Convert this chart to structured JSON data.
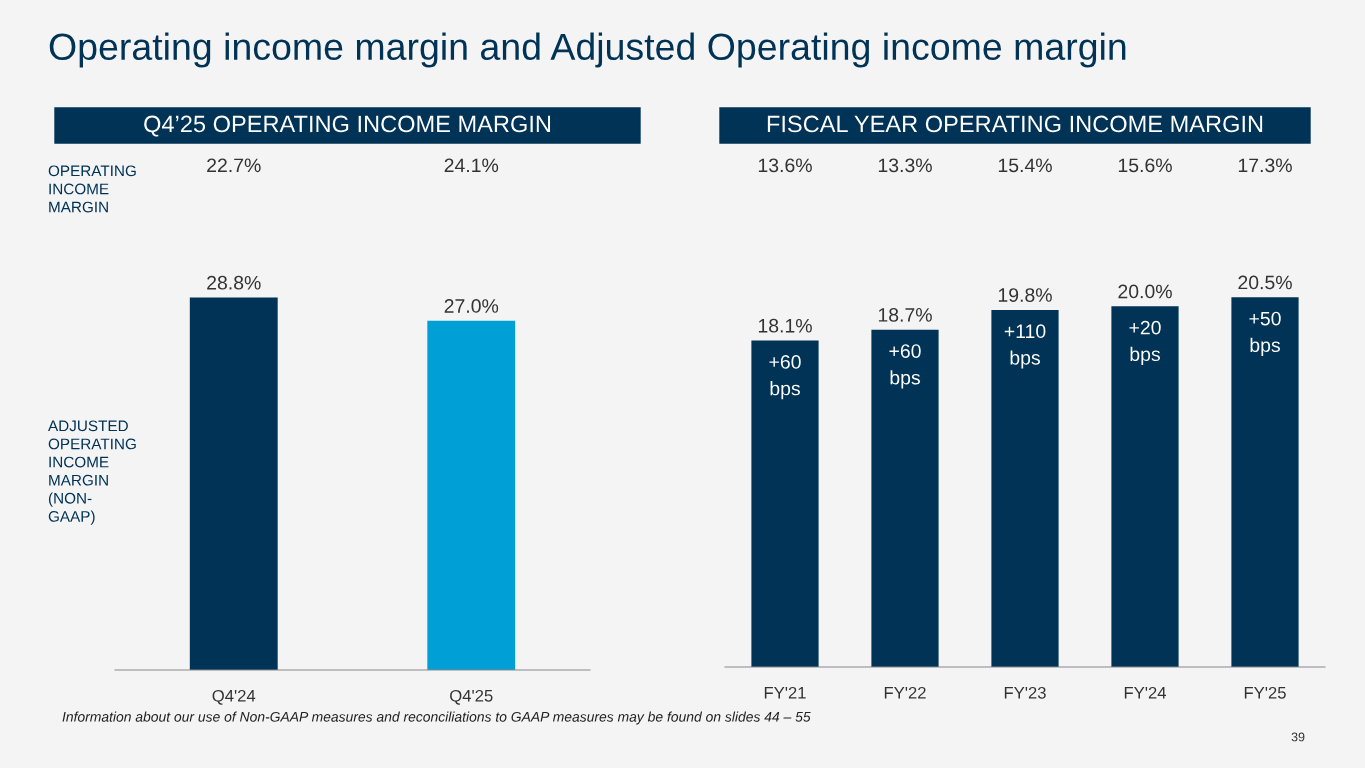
{
  "chart_data": [
    {
      "type": "bar",
      "title": "Operating income margin and Adjusted Operating income margin",
      "subtitle": "Q4’25 OPERATING INCOME MARGIN",
      "categories": [
        "Q4'24",
        "Q4'25"
      ],
      "values": [
        28.8,
        27.0
      ],
      "colors": [
        "#003356",
        "#00a0d6"
      ],
      "value_labels": [
        "28.8%",
        "27.0%"
      ],
      "tick_labels": "x",
      "grid": false,
      "legend": false,
      "annotations": [
        "22.7%",
        "24.1%",
        "OPERATING\nINCOME\nMARGIN",
        "ADJUSTED\nOPERATING\nINCOME\nMARGIN\n(NON-\nGAAP)",
        "Information about our use of Non-GAAP measures and reconciliations to GAAP measures may be found on slides 44 – 55"
      ]
    },
    {
      "type": "bar",
      "subtitle": "FISCAL YEAR OPERATING INCOME MARGIN",
      "categories": [
        "FY'21",
        "FY'22",
        "FY'23",
        "FY'24",
        "FY'25"
      ],
      "values": [
        18.1,
        18.7,
        19.8,
        20.0,
        20.5
      ],
      "color": "#003356",
      "value_labels": [
        "18.1%",
        "18.7%",
        "19.8%",
        "20.0%",
        "20.5%"
      ],
      "tick_labels": "x",
      "grid": false,
      "legend": false,
      "annotations": [
        "13.6%",
        "13.3%",
        "15.4%",
        "15.6%",
        "17.3%",
        "+60\nbps",
        "+60\nbps",
        "+110\nbps",
        "+20\nbps",
        "+50\nbps",
        "39"
      ]
    }
  ]
}
